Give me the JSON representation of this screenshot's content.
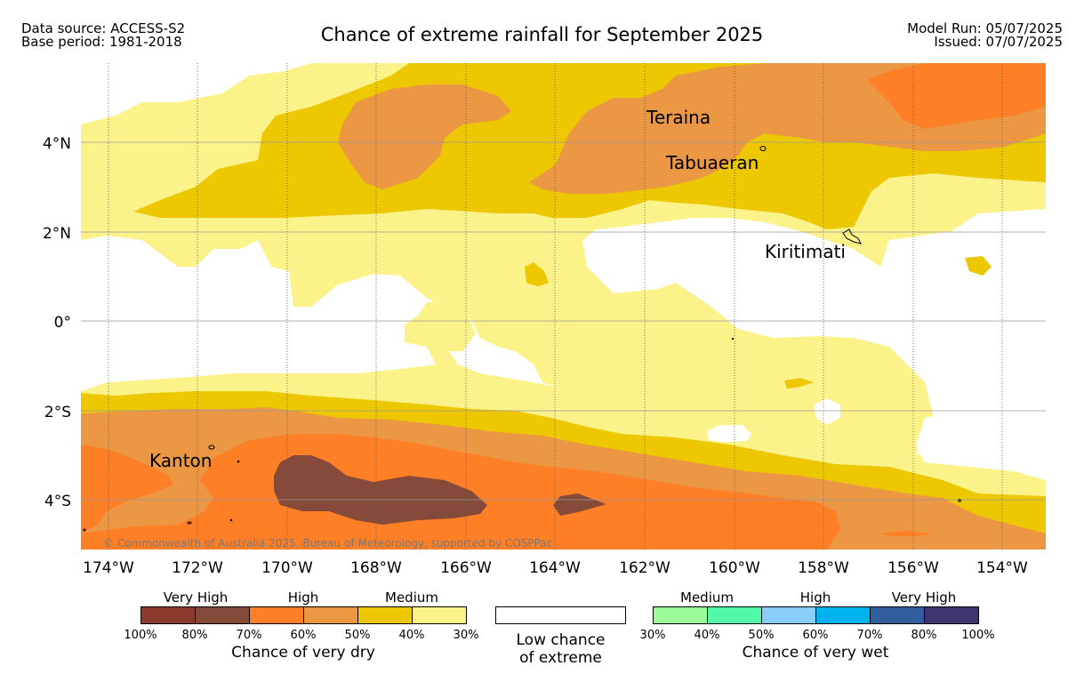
{
  "header": {
    "source_line1": "Data source: ACCESS-S2",
    "source_line2": "Base period: 1981-2018",
    "title": "Chance of extreme rainfall for September 2025",
    "model_run": "Model Run: 05/07/2025",
    "issued": "Issued: 07/07/2025"
  },
  "map": {
    "x_ticks": [
      "174°W",
      "172°W",
      "170°W",
      "168°W",
      "166°W",
      "164°W",
      "162°W",
      "160°W",
      "158°W",
      "156°W",
      "154°W"
    ],
    "y_ticks": [
      "4°N",
      "2°N",
      "0°",
      "2°S",
      "4°S"
    ],
    "places": [
      "Teraina",
      "Tabuaeran",
      "Kiritimati",
      "Kanton"
    ],
    "copyright": "© Commonwealth of Australia 2025, Bureau of Meteorology, supported by COSPPac",
    "colors": {
      "dry_vhigh_1": "#8B3A2E",
      "dry_vhigh_2": "#864A3B",
      "dry_high_1": "#FF7F27",
      "dry_high_2": "#EB9743",
      "dry_med_1": "#EDC700",
      "dry_med_2": "#FCF28A",
      "low": "#FFFFFF"
    }
  },
  "legend": {
    "dry": {
      "headers": [
        "Very High",
        "High",
        "Medium"
      ],
      "ticks": [
        "100%",
        "80%",
        "70%",
        "60%",
        "50%",
        "40%",
        "30%"
      ],
      "colors": [
        "#8B3A2E",
        "#864A3B",
        "#FF7F27",
        "#EB9743",
        "#EDC700",
        "#FCF28A"
      ],
      "title": "Chance of very dry"
    },
    "low": {
      "line1": "Low chance",
      "line2": "of extreme"
    },
    "wet": {
      "headers": [
        "Medium",
        "High",
        "Very High"
      ],
      "ticks": [
        "30%",
        "40%",
        "50%",
        "60%",
        "70%",
        "80%",
        "100%"
      ],
      "colors": [
        "#9BFB98",
        "#52F9A6",
        "#89CDF8",
        "#00B3EC",
        "#335E9E",
        "#3F3670"
      ],
      "title": "Chance of very wet"
    }
  }
}
